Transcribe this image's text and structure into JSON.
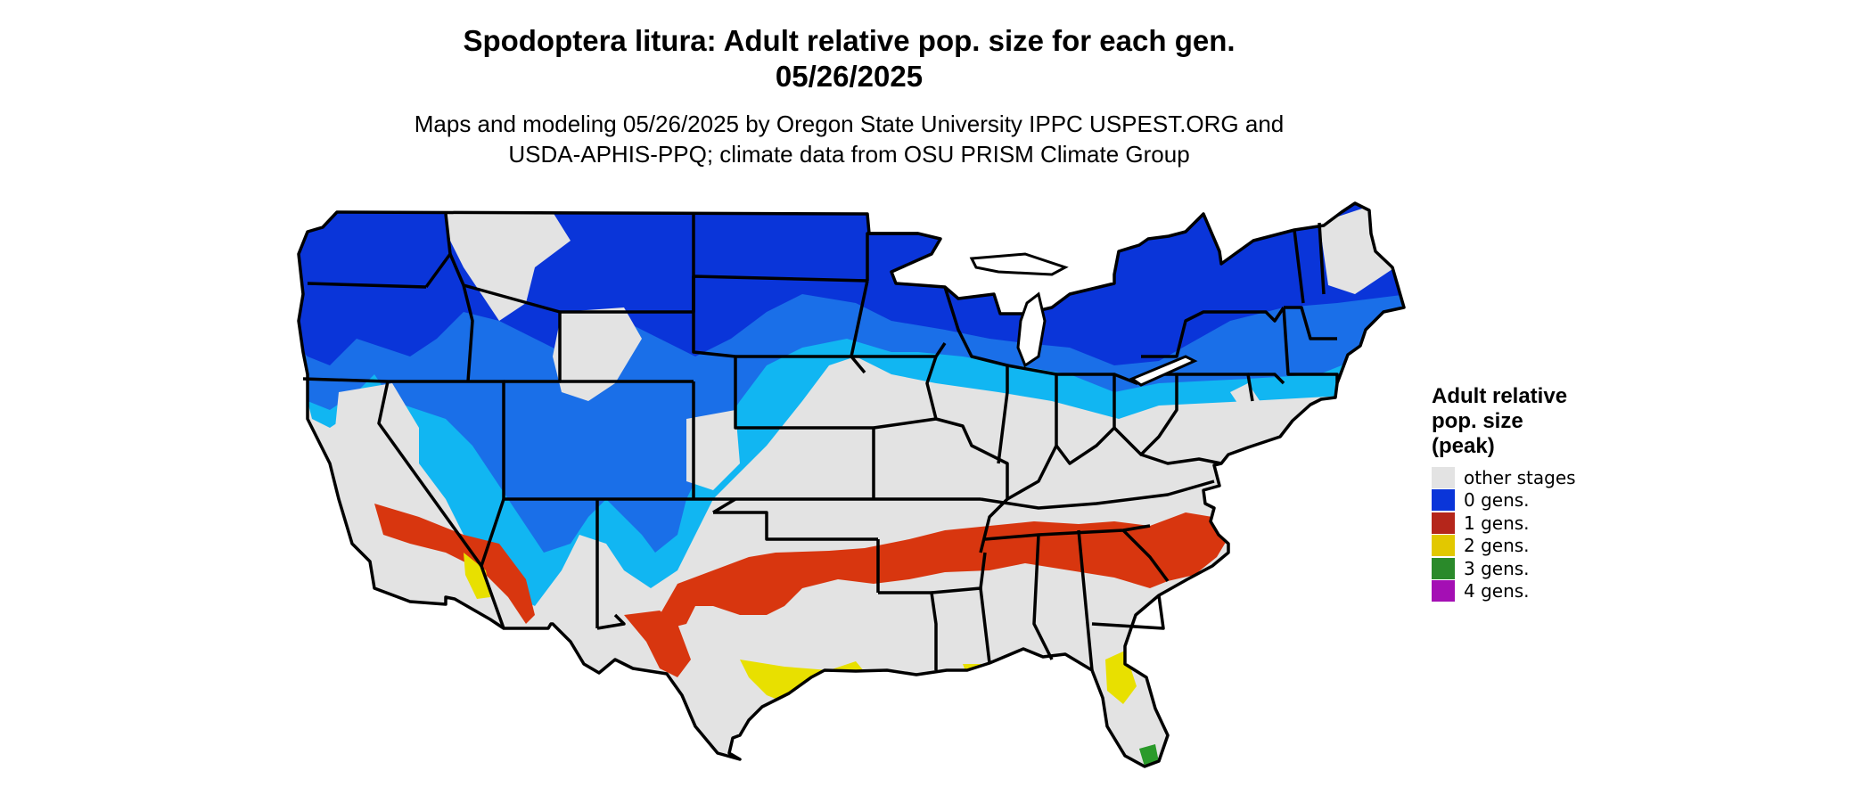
{
  "title_line1": "Spodoptera litura: Adult relative pop. size for each gen.",
  "title_line2": "05/26/2025",
  "subtitle_line1": "Maps and modeling 05/26/2025 by Oregon State University IPPC USPEST.ORG and",
  "subtitle_line2": "USDA-APHIS-PPQ; climate data from OSU PRISM Climate Group",
  "legend": {
    "title_lines": [
      "Adult relative",
      "pop. size",
      "(peak)"
    ],
    "items": [
      {
        "label": "other stages",
        "color": "#e3e3e3"
      },
      {
        "label": "0 gens.",
        "color": "#0a35d9"
      },
      {
        "label": "1 gens.",
        "color": "#b5261b"
      },
      {
        "label": "2 gens.",
        "color": "#e2c800"
      },
      {
        "label": "3 gens.",
        "color": "#2a8a2a"
      },
      {
        "label": "4 gens.",
        "color": "#a40fb4"
      }
    ]
  },
  "palette": {
    "land": "#e3e3e3",
    "gen0_dark": "#0a35d9",
    "gen0_mid": "#1a6fe8",
    "gen0_light": "#11b6f2",
    "gen1": "#d8360f",
    "gen2": "#e8e000",
    "gen3": "#2a9a2a",
    "border": "#000000"
  }
}
